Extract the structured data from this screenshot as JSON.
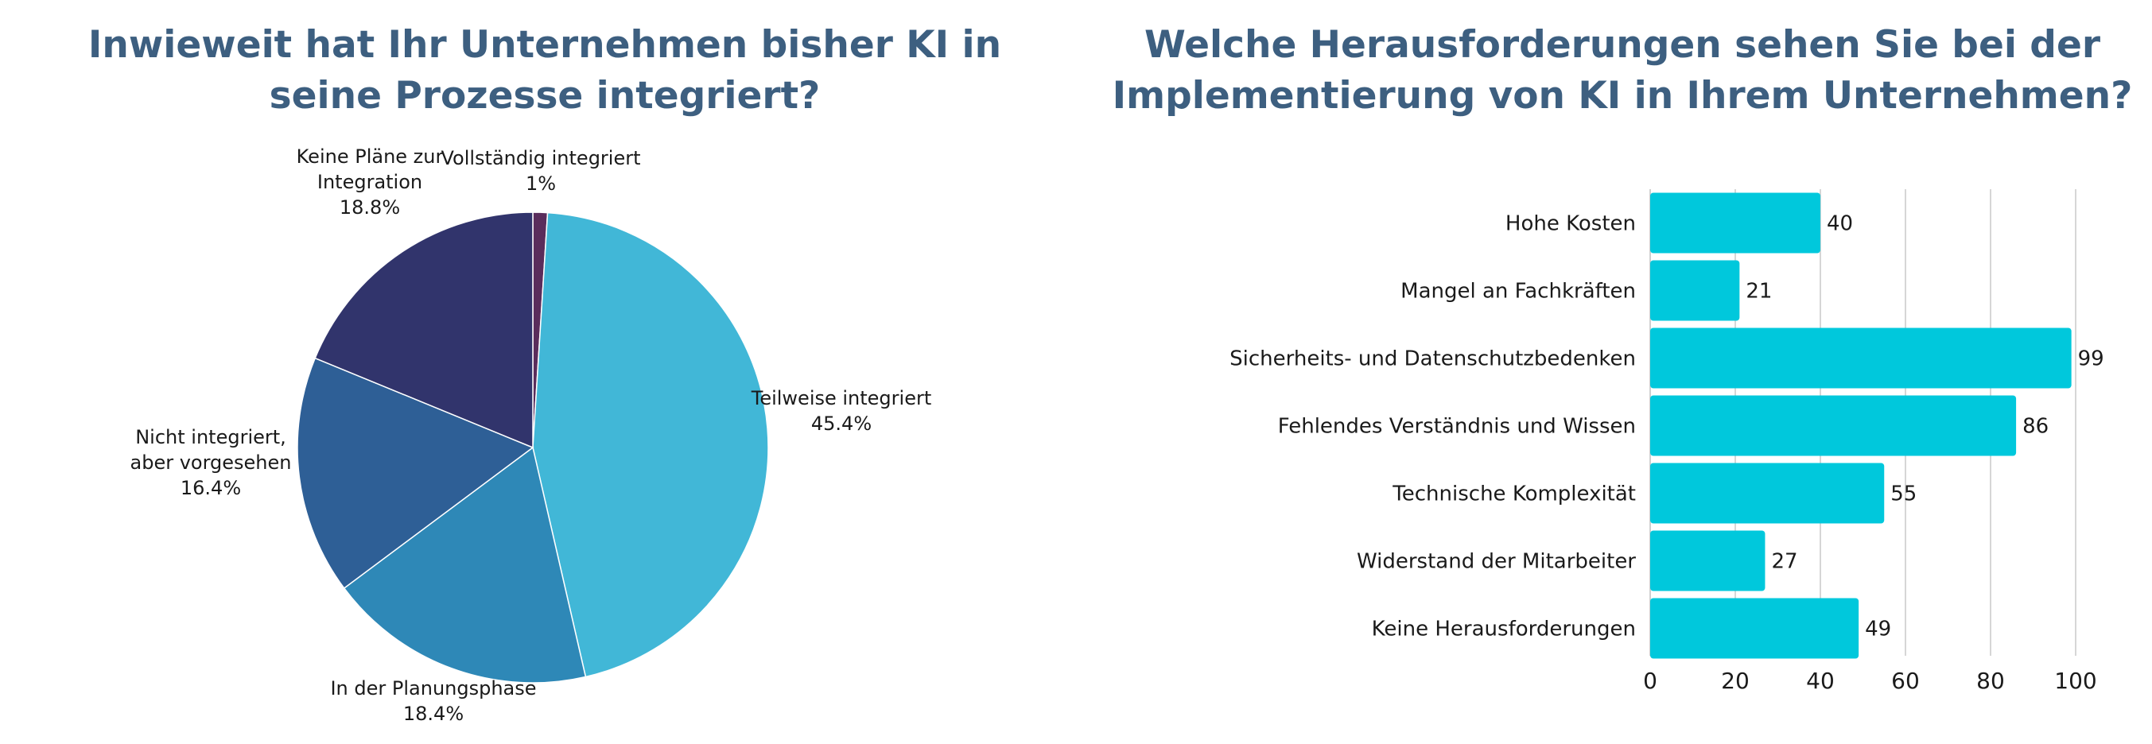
{
  "chart_data": [
    {
      "type": "pie",
      "title": "Inwieweit hat Ihr Unternehmen bisher KI in seine Prozesse integriert?",
      "slices": [
        {
          "label": [
            "Vollständig integriert"
          ],
          "value": 1,
          "value_label": "1%",
          "color": "#5a2d5c"
        },
        {
          "label": [
            "Teilweise integriert"
          ],
          "value": 45.4,
          "value_label": "45.4%",
          "color": "#41b7d7"
        },
        {
          "label": [
            "In der Planungsphase"
          ],
          "value": 18.4,
          "value_label": "18.4%",
          "color": "#2e88b7"
        },
        {
          "label": [
            "Nicht integriert,",
            "aber vorgesehen"
          ],
          "value": 16.4,
          "value_label": "16.4%",
          "color": "#2e5f96"
        },
        {
          "label": [
            "Keine Pläne zur",
            "Integration"
          ],
          "value": 18.8,
          "value_label": "18.8%",
          "color": "#31346c"
        }
      ]
    },
    {
      "type": "bar",
      "orientation": "horizontal",
      "title": "Welche Herausforderungen sehen Sie bei der Implementierung von KI in Ihrem Unternehmen?",
      "categories": [
        "Hohe Kosten",
        "Mangel an Fachkräften",
        "Sicherheits- und Datenschutzbedenken",
        "Fehlendes Verständnis und Wissen",
        "Technische Komplexität",
        "Widerstand der Mitarbeiter",
        "Keine Herausforderungen"
      ],
      "values": [
        40,
        21,
        99,
        86,
        55,
        27,
        49
      ],
      "xlim": [
        0,
        100
      ],
      "xticks": [
        0,
        20,
        40,
        60,
        80,
        100
      ],
      "grid": true,
      "bar_color": "#00c8dc"
    }
  ]
}
